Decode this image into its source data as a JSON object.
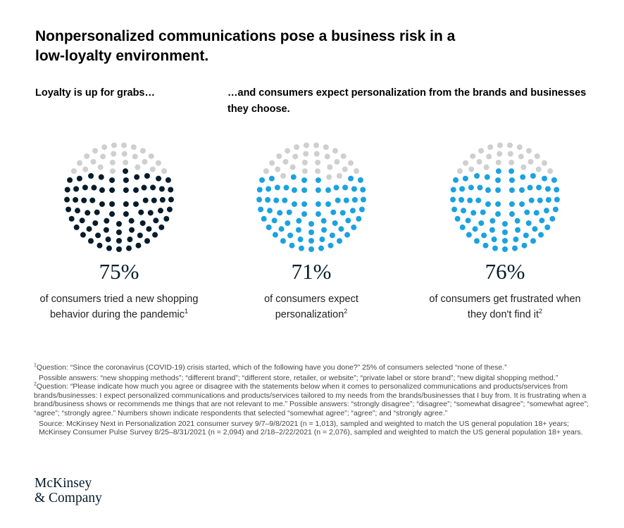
{
  "title": "Nonpersonalized communications pose a business risk in a low-loyalty environment.",
  "subheads": {
    "left": "Loyalty is up for grabs…",
    "right": "…and consumers expect personalization from the brands and businesses they choose."
  },
  "colors": {
    "inactive": "#cfcfcf",
    "dark": "#051c2c",
    "blue": "#1ba2e0"
  },
  "chart_data": {
    "type": "dot-matrix",
    "unit": "percent of consumers",
    "dots_per_chart": 100,
    "charts": [
      {
        "value": 75,
        "label": "75%",
        "description": "of consumers tried a new shopping behavior during the pandemic",
        "footnote": "1",
        "color": "#051c2c"
      },
      {
        "value": 71,
        "label": "71%",
        "description": "of consumers expect personalization",
        "footnote": "2",
        "color": "#1ba2e0"
      },
      {
        "value": 76,
        "label": "76%",
        "description": "of consumers get frustrated when they don't find it",
        "footnote": "2",
        "color": "#1ba2e0"
      }
    ]
  },
  "footnotes": {
    "n1": {
      "marker": "1",
      "line1": "Question: “Since the coronavirus (COVID-19) crisis started, which of the following have you done?” 25% of consumers selected “none of these.”",
      "line2": "Possible answers: “new shopping methods”; “different brand”; “different store, retailer, or website”; “private label or store brand”; “new digital shopping method.”"
    },
    "n2": {
      "marker": "2",
      "text": "Question: “Please indicate how much you agree or disagree with the statements below when it comes to personalized communications and products/services from brands/businesses: I expect personalized communications and products/services tailored to my needs from the brands/businesses that I buy from. It is frustrating when a brand/business shows or recommends me things that are not relevant to me.” Possible answers: “strongly disagree”; “disagree”; “somewhat disagree”; “somewhat agree”; “agree”; “strongly agree.” Numbers shown indicate respondents that selected “somewhat agree”; “agree”; and “strongly agree.”",
      "source": "Source: McKinsey Next in Personalization 2021 consumer survey 9/7–9/8/2021 (n = 1,013), sampled and weighted to match the US general population 18+ years; McKinsey Consumer Pulse Survey 8/25–8/31/2021 (n = 2,094) and 2/18–2/22/2021 (n = 2,076), sampled and weighted to match the US general population 18+ years."
    }
  },
  "logo": {
    "line1": "McKinsey",
    "line2": "& Company"
  }
}
